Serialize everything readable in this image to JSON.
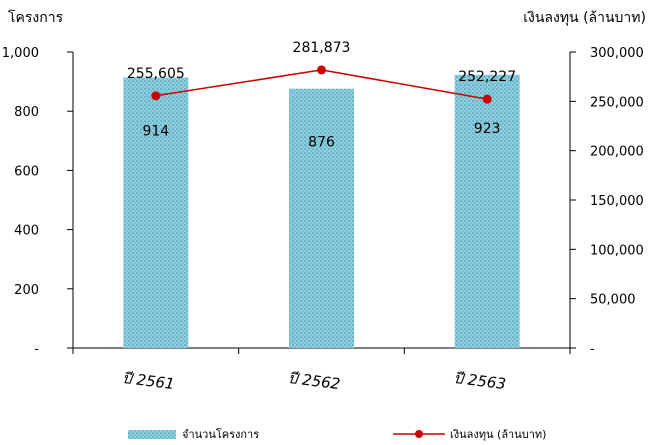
{
  "chart_data": {
    "type": "bar",
    "title": "",
    "ylabel_left": "โครงการ",
    "ylabel_right": "เงินลงทุน (ล้านบาท)",
    "categories": [
      "ปี 2561",
      "ปี 2562",
      "ปี 2563"
    ],
    "ylim_left": [
      0,
      1000
    ],
    "ylim_right": [
      0,
      300000
    ],
    "yticks_left": [
      "-",
      "200",
      "400",
      "600",
      "800",
      "1,000"
    ],
    "yticks_right": [
      "-",
      "50,000",
      "100,000",
      "150,000",
      "200,000",
      "250,000",
      "300,000"
    ],
    "grid": false,
    "legend_position": "bottom",
    "series": [
      {
        "name": "จำนวนโครงการ",
        "type": "bar",
        "axis": "left",
        "values": [
          914,
          876,
          923
        ],
        "labels": [
          "914",
          "876",
          "923"
        ],
        "color": "#7fc4d6"
      },
      {
        "name": "เงินลงทุน (ล้านบาท)",
        "type": "line",
        "axis": "right",
        "values": [
          255605,
          281873,
          252227
        ],
        "labels": [
          "255,605",
          "281,873",
          "252,227"
        ],
        "color": "#cc0000"
      }
    ]
  }
}
